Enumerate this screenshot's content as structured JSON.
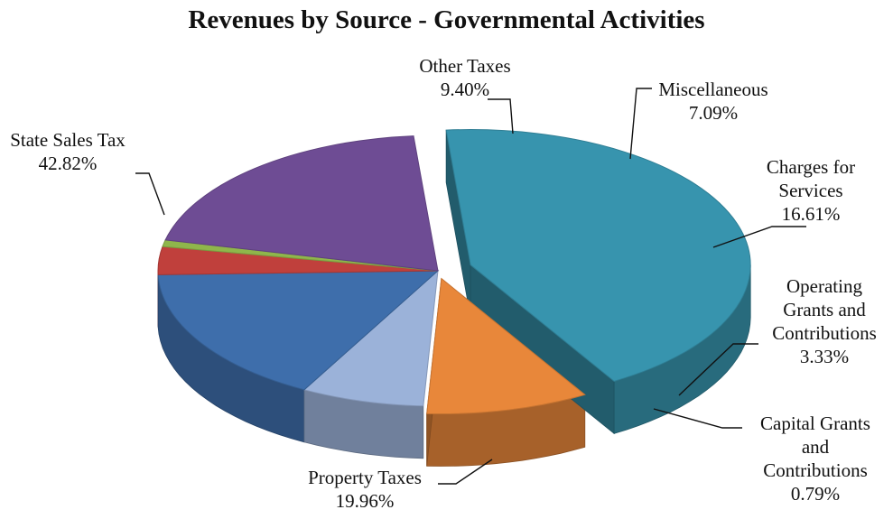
{
  "chart_data": {
    "type": "pie",
    "title": "Revenues by Source - Governmental Activities",
    "slices": [
      {
        "label": [
          "State Sales Tax",
          "42.82%"
        ],
        "value": 42.82,
        "color": "#3794AE"
      },
      {
        "label": [
          "Other Taxes",
          "9.40%"
        ],
        "value": 9.4,
        "color": "#E8873A"
      },
      {
        "label": [
          "Miscellaneous",
          "7.09%"
        ],
        "value": 7.09,
        "color": "#9BB2D9"
      },
      {
        "label": [
          "Charges for",
          "Services",
          "16.61%"
        ],
        "value": 16.61,
        "color": "#3E6EAB"
      },
      {
        "label": [
          "Operating",
          "Grants and",
          "Contributions",
          "3.33%"
        ],
        "value": 3.33,
        "color": "#C0403C"
      },
      {
        "label": [
          "Capital Grants",
          "and",
          "Contributions",
          "0.79%"
        ],
        "value": 0.79,
        "color": "#8FB64B"
      },
      {
        "label": [
          "Property Taxes",
          "19.96%"
        ],
        "value": 19.96,
        "color": "#6E4C94"
      }
    ],
    "legend": "none"
  }
}
